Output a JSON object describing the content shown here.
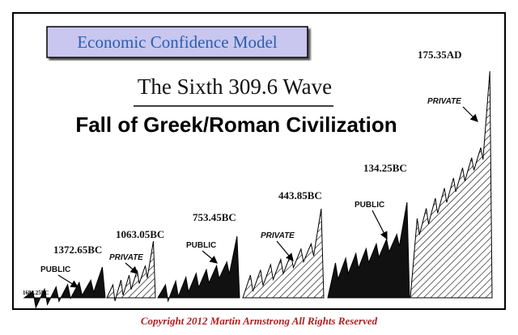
{
  "title_box": "Economic Confidence Model",
  "subtitle": "The Sixth 309.6 Wave",
  "heading": "Fall of Greek/Roman Civilization",
  "dates": [
    "1682.25BC",
    "1372.65BC",
    "1063.05BC",
    "753.45BC",
    "443.85BC",
    "134.25BC",
    "175.35AD"
  ],
  "sectors": [
    "PUBLIC",
    "PRIVATE",
    "PUBLIC",
    "PRIVATE",
    "PUBLIC",
    "PRIVATE"
  ],
  "footer": "Copyright 2012 Martin Armstrong All Rights Reserved"
}
